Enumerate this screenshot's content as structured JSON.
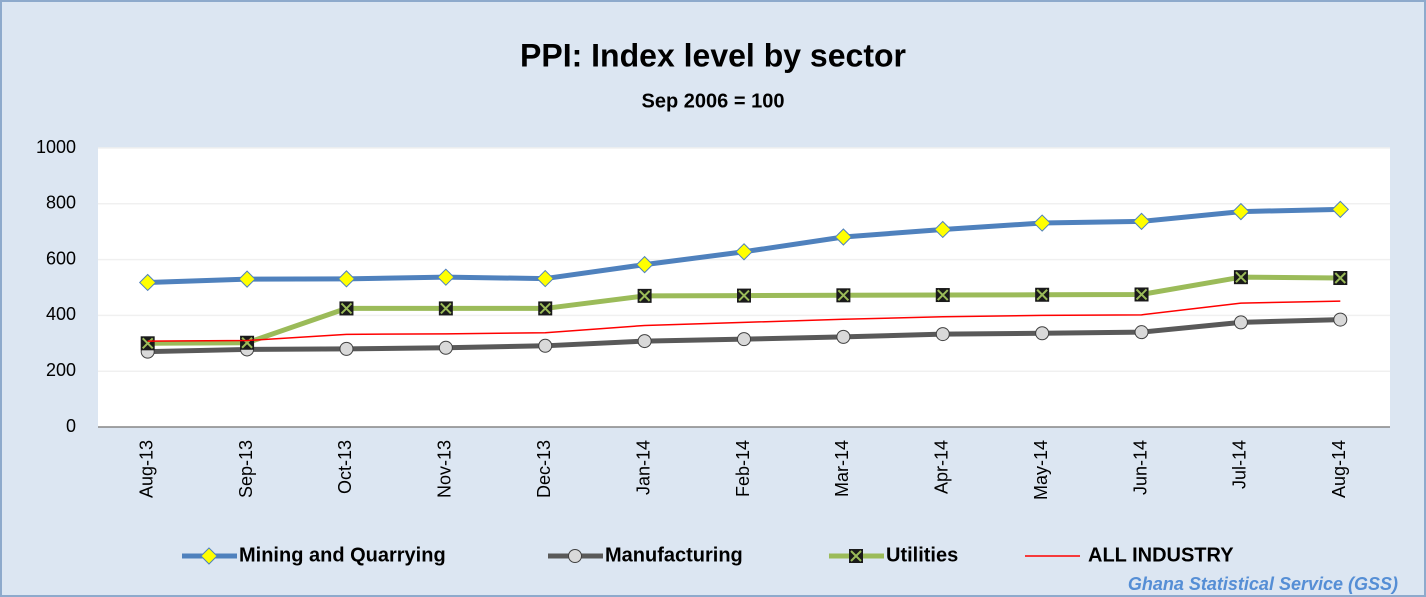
{
  "chart_data": {
    "type": "line",
    "title": "PPI:  Index level by sector",
    "subtitle": "Sep 2006 = 100",
    "source": "Ghana Statistical Service (GSS)",
    "categories": [
      "Aug-13",
      "Sep-13",
      "Oct-13",
      "Nov-13",
      "Dec-13",
      "Jan-14",
      "Feb-14",
      "Mar-14",
      "Apr-14",
      "May-14",
      "Jun-14",
      "Jul-14",
      "Aug-14"
    ],
    "series": [
      {
        "name": "Mining and Quarrying",
        "color": "#4f81bd",
        "marker": "diamond",
        "values": [
          518,
          530,
          531,
          537,
          532,
          582,
          628,
          681,
          708,
          731,
          737,
          772,
          780
        ]
      },
      {
        "name": "Manufacturing",
        "color": "#595959",
        "marker": "circle",
        "values": [
          270,
          278,
          280,
          284,
          291,
          308,
          315,
          323,
          333,
          336,
          340,
          375,
          385
        ]
      },
      {
        "name": "Utilities",
        "color": "#9bbb59",
        "marker": "square",
        "values": [
          300,
          302,
          425,
          425,
          425,
          470,
          471,
          472,
          473,
          474,
          475,
          537,
          534
        ]
      },
      {
        "name": "ALL INDUSTRY",
        "color": "#ff0000",
        "marker": "none",
        "values": [
          308,
          310,
          332,
          334,
          338,
          364,
          375,
          386,
          395,
          400,
          402,
          444,
          451
        ]
      }
    ],
    "ylim": [
      0,
      1000
    ],
    "yticks": [
      0,
      200,
      400,
      600,
      800,
      1000
    ],
    "grid": true,
    "legend": "bottom"
  }
}
